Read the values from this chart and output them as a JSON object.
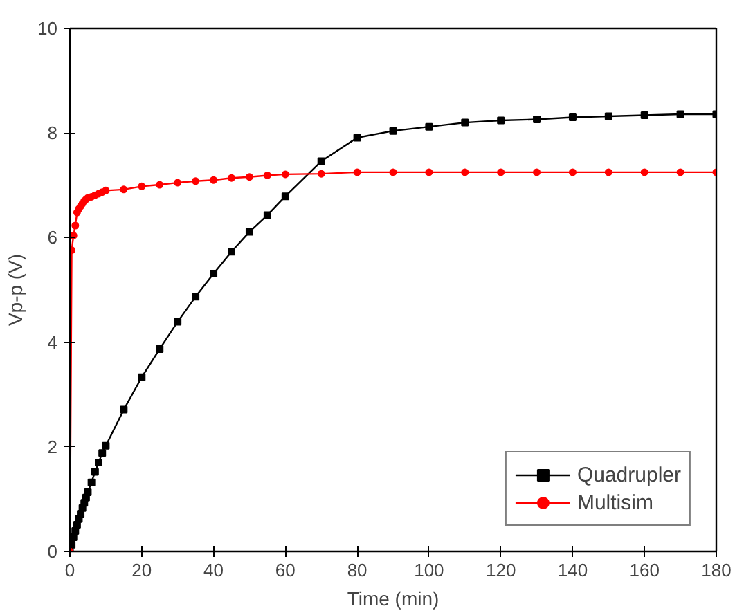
{
  "chart_data": {
    "type": "line",
    "xlabel": "Time (min)",
    "ylabel": "Vp-p (V)",
    "xlim": [
      0,
      180
    ],
    "ylim": [
      0,
      10
    ],
    "xticks": [
      0,
      20,
      40,
      60,
      80,
      100,
      120,
      140,
      160,
      180
    ],
    "yticks": [
      0,
      2,
      4,
      6,
      8,
      10
    ],
    "grid": false,
    "legend": "bottom right",
    "series": [
      {
        "name": "Quadrupler",
        "color": "#000000",
        "marker": "square",
        "x": [
          0,
          0.5,
          1,
          1.5,
          2,
          2.5,
          3,
          3.5,
          4,
          4.5,
          5,
          6,
          7,
          8,
          9,
          10,
          15,
          20,
          25,
          30,
          35,
          40,
          45,
          50,
          55,
          60,
          70,
          80,
          90,
          100,
          110,
          120,
          130,
          140,
          150,
          160,
          170,
          180
        ],
        "values": [
          0,
          0.13,
          0.27,
          0.39,
          0.51,
          0.62,
          0.72,
          0.83,
          0.93,
          1.03,
          1.13,
          1.32,
          1.52,
          1.7,
          1.88,
          2.02,
          2.71,
          3.33,
          3.87,
          4.39,
          4.87,
          5.31,
          5.73,
          6.11,
          6.43,
          6.79,
          7.46,
          7.91,
          8.04,
          8.12,
          8.2,
          8.24,
          8.26,
          8.3,
          8.32,
          8.34,
          8.36,
          8.36
        ]
      },
      {
        "name": "Multisim",
        "color": "#ff0000",
        "marker": "circle",
        "x": [
          0,
          0.5,
          1,
          1.5,
          2,
          2.5,
          3,
          3.5,
          4,
          4.5,
          5,
          6,
          7,
          8,
          9,
          10,
          15,
          20,
          25,
          30,
          35,
          40,
          45,
          50,
          55,
          60,
          70,
          80,
          90,
          100,
          110,
          120,
          130,
          140,
          150,
          160,
          170,
          180
        ],
        "values": [
          0,
          5.76,
          6.04,
          6.23,
          6.48,
          6.55,
          6.6,
          6.65,
          6.7,
          6.73,
          6.76,
          6.78,
          6.81,
          6.84,
          6.87,
          6.9,
          6.92,
          6.98,
          7.01,
          7.05,
          7.08,
          7.1,
          7.14,
          7.16,
          7.19,
          7.21,
          7.22,
          7.25,
          7.25,
          7.25,
          7.25,
          7.25,
          7.25,
          7.25,
          7.25,
          7.25,
          7.25,
          7.25
        ]
      }
    ]
  }
}
